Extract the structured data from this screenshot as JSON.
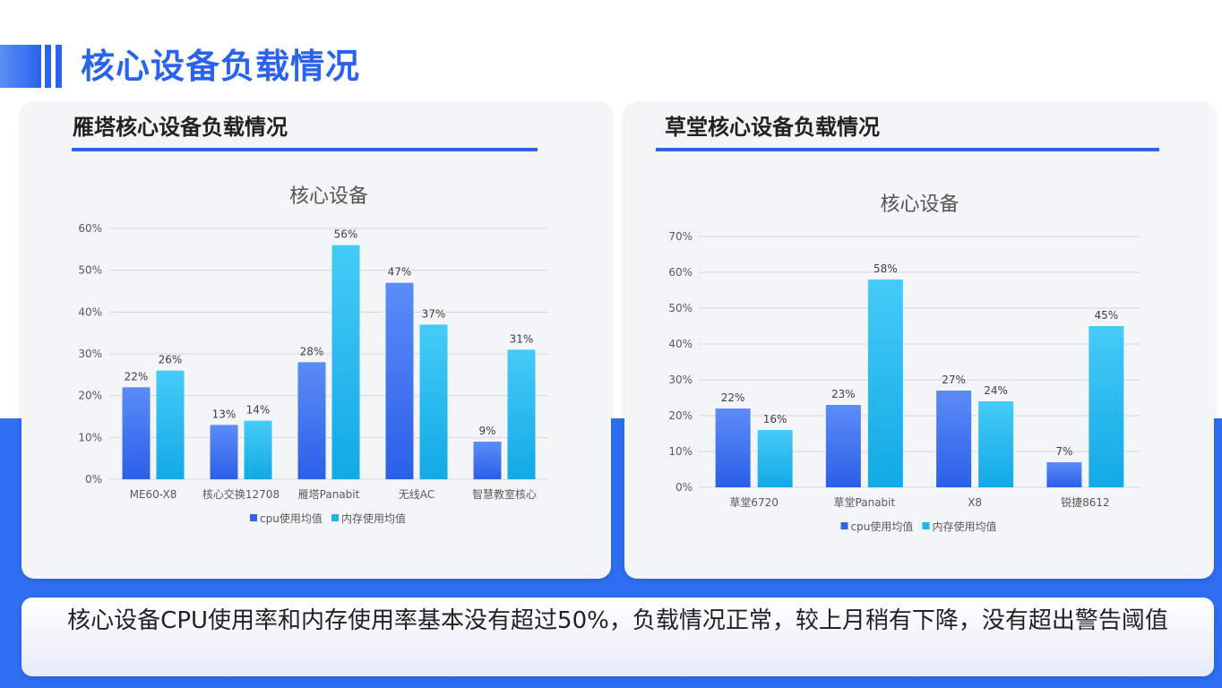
{
  "page": {
    "title": "核心设备负载情况",
    "summary": "核心设备CPU使用率和内存使用率基本没有超过50%，负载情况正常，较上月稍有下降，没有超出警告阈值"
  },
  "colors": {
    "accent": "#2a63ee",
    "cpu": "#3b6ff0",
    "mem": "#26b8f0",
    "background_band": "#2f6ef0"
  },
  "panels": [
    {
      "title": "雁塔核心设备负载情况"
    },
    {
      "title": "草堂核心设备负载情况"
    }
  ],
  "chart_data": [
    {
      "type": "bar",
      "title": "核心设备",
      "categories": [
        "ME60-X8",
        "核心交换12708",
        "雁塔Panabit",
        "无线AC",
        "智慧教室核心"
      ],
      "series": [
        {
          "name": "cpu使用均值",
          "values": [
            22,
            13,
            28,
            47,
            9
          ],
          "labels": [
            "22%",
            "13%",
            "28%",
            "47%",
            "9%"
          ]
        },
        {
          "name": "内存使用均值",
          "values": [
            26,
            14,
            56,
            37,
            31
          ],
          "labels": [
            "26%",
            "14%",
            "56%",
            "37%",
            "31%"
          ]
        }
      ],
      "ylim": [
        0,
        60
      ],
      "yticks": [
        "0%",
        "10%",
        "20%",
        "30%",
        "40%",
        "50%",
        "60%"
      ],
      "grid": true,
      "legend": "bottom"
    },
    {
      "type": "bar",
      "title": "核心设备",
      "categories": [
        "草堂6720",
        "草堂Panabit",
        "X8",
        "锐捷8612"
      ],
      "series": [
        {
          "name": "cpu使用均值",
          "values": [
            22,
            23,
            27,
            7
          ],
          "labels": [
            "22%",
            "23%",
            "27%",
            "7%"
          ]
        },
        {
          "name": "内存使用均值",
          "values": [
            16,
            58,
            24,
            45
          ],
          "labels": [
            "16%",
            "58%",
            "24%",
            "45%"
          ]
        }
      ],
      "ylim": [
        0,
        70
      ],
      "yticks": [
        "0%",
        "10%",
        "20%",
        "30%",
        "40%",
        "50%",
        "60%",
        "70%"
      ],
      "grid": true,
      "legend": "bottom"
    }
  ]
}
